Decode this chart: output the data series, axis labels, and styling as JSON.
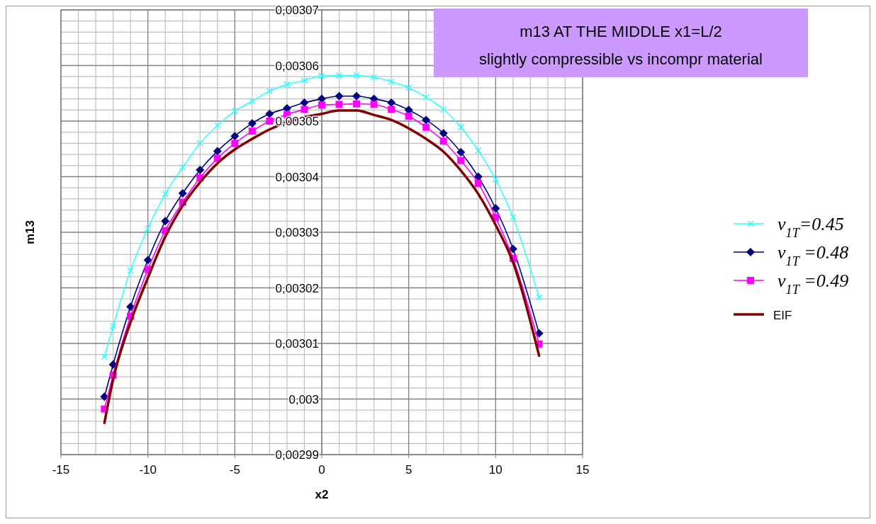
{
  "chart_data": {
    "type": "line",
    "title": "m13 AT THE MIDDLE  x1=L/2",
    "subtitle": "slightly compressible vs incompr material",
    "xlabel": "x2",
    "ylabel": "m13",
    "x": [
      -12.5,
      -12,
      -11,
      -10,
      -9,
      -8,
      -7,
      -6,
      -5,
      -4,
      -3,
      -2,
      -1,
      0,
      1,
      2,
      3,
      4,
      5,
      6,
      7,
      8,
      9,
      10,
      11,
      12.5
    ],
    "series": [
      {
        "name": "v$_{1T}$=0.45",
        "color": "#33ffff",
        "marker": "cross",
        "values": [
          0.0030076,
          0.0030131,
          0.0030231,
          0.0030307,
          0.0030369,
          0.0030417,
          0.003046,
          0.0030492,
          0.0030518,
          0.0030536,
          0.0030554,
          0.0030566,
          0.0030573,
          0.0030581,
          0.0030582,
          0.0030582,
          0.0030579,
          0.0030571,
          0.003056,
          0.0030543,
          0.0030521,
          0.0030489,
          0.0030447,
          0.0030395,
          0.0030327,
          0.0030183
        ]
      },
      {
        "name": "v$_{1T}$ =0.48",
        "color": "#000080",
        "marker": "diamond",
        "values": [
          0.0030004,
          0.0030062,
          0.0030166,
          0.003025,
          0.003032,
          0.003037,
          0.0030412,
          0.0030446,
          0.0030473,
          0.0030496,
          0.0030513,
          0.0030523,
          0.0030533,
          0.003054,
          0.0030545,
          0.0030545,
          0.003054,
          0.0030533,
          0.003052,
          0.0030502,
          0.0030478,
          0.0030444,
          0.00304,
          0.0030343,
          0.003027,
          0.0030118
        ]
      },
      {
        "name": "v$_{1T}$ =0.49",
        "color": "#ff00ff",
        "marker": "square",
        "values": [
          0.0029982,
          0.0030043,
          0.0030149,
          0.0030233,
          0.0030303,
          0.0030354,
          0.0030398,
          0.0030433,
          0.003046,
          0.0030482,
          0.00305,
          0.0030512,
          0.0030521,
          0.0030529,
          0.003053,
          0.0030531,
          0.003053,
          0.0030521,
          0.0030509,
          0.0030489,
          0.0030464,
          0.0030429,
          0.0030388,
          0.0030327,
          0.0030253,
          0.0030099
        ]
      },
      {
        "name": "EIF",
        "color": "#800000",
        "marker": "none",
        "values": [
          0.0029957,
          0.0030035,
          0.0030138,
          0.0030218,
          0.0030292,
          0.0030348,
          0.003039,
          0.0030424,
          0.0030449,
          0.0030468,
          0.0030485,
          0.0030498,
          0.0030507,
          0.0030513,
          0.0030519,
          0.0030519,
          0.0030511,
          0.0030502,
          0.0030487,
          0.0030468,
          0.0030445,
          0.0030411,
          0.0030369,
          0.0030313,
          0.0030246,
          0.0030078
        ]
      }
    ],
    "xlim": [
      -15,
      15
    ],
    "xticks": [
      -15,
      -10,
      -5,
      0,
      5,
      10,
      15
    ],
    "ylim": [
      0.00299,
      0.00307
    ],
    "yticks": [
      {
        "value": 0.00299,
        "label": "0,00299"
      },
      {
        "value": 0.003,
        "label": "0,003"
      },
      {
        "value": 0.00301,
        "label": "0,00301"
      },
      {
        "value": 0.00302,
        "label": "0,00302"
      },
      {
        "value": 0.00303,
        "label": "0,00303"
      },
      {
        "value": 0.00304,
        "label": "0,00304"
      },
      {
        "value": 0.00305,
        "label": "0,00305"
      },
      {
        "value": 0.00306,
        "label": "0,00306"
      },
      {
        "value": 0.00307,
        "label": "0,00307"
      }
    ],
    "grid": true,
    "legend": "right",
    "line_style": "solid"
  }
}
